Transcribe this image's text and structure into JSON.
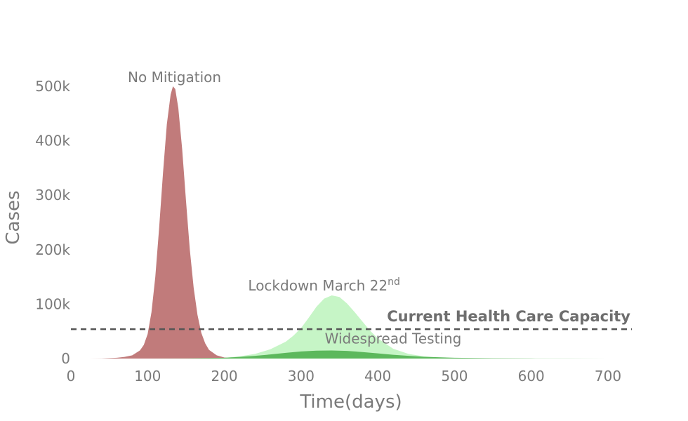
{
  "chart_data": {
    "type": "area",
    "xlabel": "Time(days)",
    "ylabel": "Cases",
    "xlim": [
      0,
      720
    ],
    "ylim": [
      0,
      510000
    ],
    "x_ticks": [
      0,
      100,
      200,
      300,
      400,
      500,
      600,
      700
    ],
    "x_tick_labels": [
      "0",
      "100",
      "200",
      "300",
      "400",
      "500",
      "600",
      "700"
    ],
    "y_ticks": [
      0,
      100000,
      200000,
      300000,
      400000,
      500000
    ],
    "y_tick_labels": [
      "0",
      "100k",
      "200k",
      "300k",
      "400k",
      "500k"
    ],
    "grid": false,
    "legend": "none",
    "series": [
      {
        "name": "No Mitigation",
        "color": "#c17b7b",
        "x": [
          0,
          20,
          40,
          60,
          70,
          80,
          90,
          95,
          100,
          105,
          110,
          115,
          120,
          125,
          130,
          133,
          136,
          140,
          145,
          150,
          155,
          160,
          165,
          170,
          175,
          180,
          190,
          200,
          210,
          220,
          230,
          250,
          720
        ],
        "y": [
          0,
          10,
          200,
          1500,
          3000,
          6000,
          15000,
          25000,
          45000,
          85000,
          150000,
          240000,
          340000,
          430000,
          485000,
          500000,
          495000,
          460000,
          385000,
          290000,
          200000,
          130000,
          80000,
          47000,
          28000,
          16000,
          6000,
          2000,
          700,
          250,
          80,
          10,
          0
        ]
      },
      {
        "name": "Lockdown March 22",
        "label_superscript": "nd",
        "color": "#c6f5c6",
        "x": [
          0,
          100,
          150,
          200,
          220,
          240,
          260,
          280,
          290,
          300,
          310,
          320,
          330,
          340,
          350,
          360,
          370,
          380,
          390,
          400,
          420,
          440,
          460,
          480,
          500,
          550,
          600,
          650,
          700,
          720
        ],
        "y": [
          0,
          0,
          300,
          1500,
          4000,
          8500,
          17000,
          31000,
          42000,
          56000,
          75000,
          95000,
          110000,
          116000,
          113000,
          101000,
          85000,
          68000,
          51000,
          37000,
          18000,
          8500,
          4000,
          2000,
          1000,
          300,
          100,
          40,
          10,
          0
        ]
      },
      {
        "name": "Widespread Testing",
        "color": "#5cb85c",
        "x": [
          0,
          100,
          150,
          200,
          220,
          240,
          260,
          280,
          300,
          320,
          340,
          360,
          380,
          400,
          420,
          440,
          460,
          500,
          550,
          600,
          650,
          700,
          720
        ],
        "y": [
          0,
          0,
          200,
          1500,
          3000,
          5000,
          7500,
          10500,
          13000,
          14500,
          14800,
          14000,
          12000,
          9500,
          7000,
          5000,
          3300,
          1500,
          600,
          250,
          100,
          30,
          0
        ]
      }
    ],
    "annotations": [
      {
        "text": "No Mitigation",
        "x": 135,
        "y": 508000
      },
      {
        "text": "Lockdown March 22",
        "superscript": "nd",
        "x": 330,
        "y": 125000
      },
      {
        "text": "Widespread Testing",
        "x": 420,
        "y": 28000
      },
      {
        "text": "Current Health Care Capacity",
        "x": 720,
        "y": 68000,
        "bold": true
      }
    ],
    "reference_lines": [
      {
        "label": "Current Health Care Capacity",
        "y": 54000,
        "style": "dashed",
        "color": "#555555"
      }
    ]
  }
}
